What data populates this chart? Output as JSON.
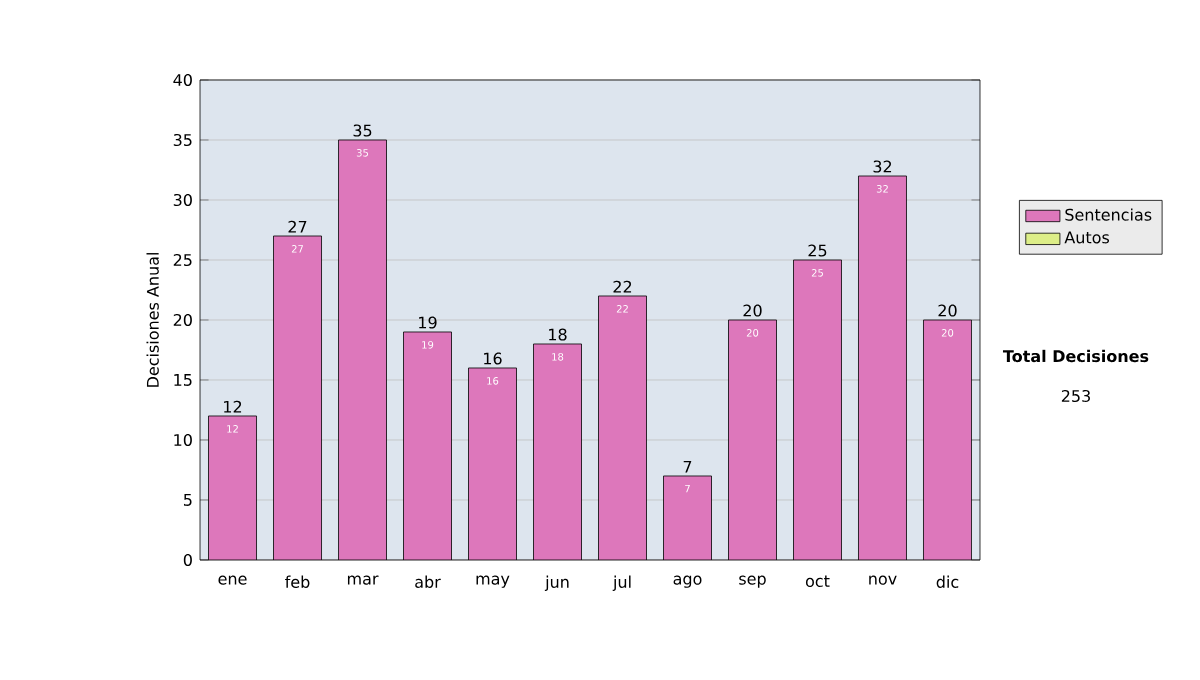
{
  "chart_data": {
    "type": "bar",
    "ylabel": "Decisiones Anual",
    "categories": [
      "ene",
      "feb",
      "mar",
      "abr",
      "may",
      "jun",
      "jul",
      "ago",
      "sep",
      "oct",
      "nov",
      "dic"
    ],
    "series": [
      {
        "name": "Sentencias",
        "color": "#dd77bb",
        "values": [
          12,
          27,
          35,
          19,
          16,
          18,
          22,
          7,
          20,
          25,
          32,
          20
        ],
        "value_labels": [
          "12",
          "27",
          "35",
          "19",
          "16",
          "18",
          "22",
          "7",
          "20",
          "25",
          "32",
          "20"
        ]
      },
      {
        "name": "Autos",
        "color": "#ddee88",
        "values": [
          null,
          null,
          null,
          null,
          null,
          null,
          null,
          null,
          null,
          null,
          null,
          null
        ]
      }
    ],
    "ylim": [
      0,
      40
    ],
    "yticks": [
      0,
      5,
      10,
      15,
      20,
      25,
      30,
      35,
      40
    ],
    "grid": "y",
    "legend": "right",
    "data_labels": true,
    "annotations": [
      "Total Decisiones",
      "253"
    ]
  }
}
